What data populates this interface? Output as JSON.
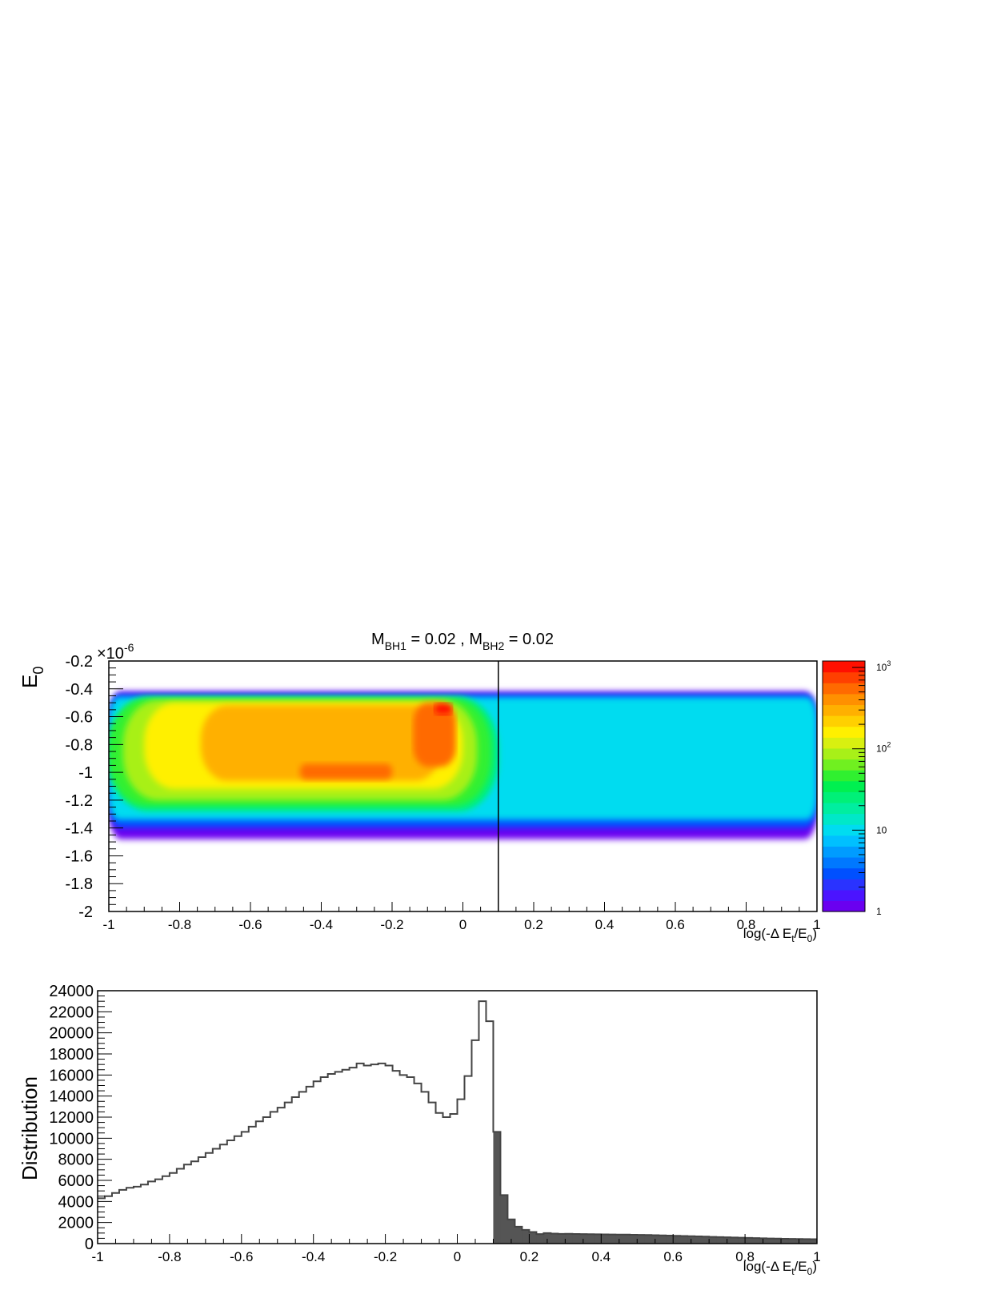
{
  "chart_data": [
    {
      "type": "heatmap",
      "title_parts": [
        "M",
        "BH1",
        " = 0.02 , M",
        "BH2",
        " = 0.02"
      ],
      "ylabel": {
        "base": "E",
        "sub": "0"
      },
      "xlabel": {
        "pre": "log(-Δ E",
        "sub1": "t",
        "mid": "/E",
        "sub2": "0",
        "post": ")"
      },
      "y_multiplier": {
        "base": "×10",
        "exp": "-6"
      },
      "xlim": [
        -1,
        1
      ],
      "ylim": [
        -2,
        -0.2
      ],
      "x_ticks": [
        "-1",
        "-0.8",
        "-0.6",
        "-0.4",
        "-0.2",
        "0",
        "0.2",
        "0.4",
        "0.6",
        "0.8",
        "1"
      ],
      "y_ticks": [
        "-2",
        "-1.8",
        "-1.6",
        "-1.4",
        "-1.2",
        "-1",
        "-0.8",
        "-0.6",
        "-0.4",
        "-0.2"
      ],
      "vertical_line_x": 0.1,
      "colorbar": {
        "scale": "log",
        "min": 1,
        "max": 1200,
        "labels": [
          {
            "value": 1,
            "base": "1",
            "exp": ""
          },
          {
            "value": 10,
            "base": "10",
            "exp": ""
          },
          {
            "value": 100,
            "base": "10",
            "exp": "2"
          },
          {
            "value": 1000,
            "base": "10",
            "exp": "3"
          }
        ],
        "colors": [
          "#6a00f0",
          "#4b14ff",
          "#2a33ff",
          "#0050ff",
          "#0078ff",
          "#009cff",
          "#00c0ff",
          "#00dcf0",
          "#00e8c8",
          "#00eea0",
          "#00f078",
          "#00f050",
          "#30f030",
          "#70f020",
          "#a8f018",
          "#d8f010",
          "#fff000",
          "#ffd000",
          "#ffb000",
          "#ff9000",
          "#ff6a00",
          "#ff4000",
          "#ff1000"
        ]
      },
      "contour_bands": [
        {
          "level": 1,
          "xl": -1.0,
          "xr": 1.0,
          "yt": -0.42,
          "yb": -1.48
        },
        {
          "level": 3,
          "xl": -1.0,
          "xr": 1.0,
          "yt": -0.44,
          "yb": -1.4
        },
        {
          "level": 10,
          "xl": -1.0,
          "xr": 1.0,
          "yt": -0.46,
          "yb": -1.34
        },
        {
          "level": 25,
          "xl": -1.0,
          "xr": 0.1,
          "yt": -0.46,
          "yb": -1.28
        },
        {
          "level": 50,
          "xl": -1.0,
          "xr": 0.08,
          "yt": -0.47,
          "yb": -1.24
        },
        {
          "level": 100,
          "xl": -0.96,
          "xr": 0.04,
          "yt": -0.48,
          "yb": -1.2
        },
        {
          "level": 170,
          "xl": -0.9,
          "xr": 0.0,
          "yt": -0.5,
          "yb": -1.12
        },
        {
          "level": 300,
          "xl": -0.74,
          "xr": -0.06,
          "yt": -0.52,
          "yb": -1.06
        },
        {
          "level": 500,
          "xl": -0.46,
          "xr": -0.2,
          "yt": -0.94,
          "yb": -1.05
        },
        {
          "level": 550,
          "xl": -0.14,
          "xr": -0.02,
          "yt": -0.5,
          "yb": -0.96
        },
        {
          "level": 1000,
          "xl": -0.08,
          "xr": -0.03,
          "yt": -0.51,
          "yb": -0.58
        }
      ]
    },
    {
      "type": "bar",
      "ylabel": "Distribution",
      "xlabel": {
        "pre": "log(-Δ E",
        "sub1": "t",
        "mid": "/E",
        "sub2": "0",
        "post": ")"
      },
      "xlim": [
        -1,
        1
      ],
      "ylim": [
        0,
        24000
      ],
      "x_ticks": [
        "-1",
        "-0.8",
        "-0.6",
        "-0.4",
        "-0.2",
        "0",
        "0.2",
        "0.4",
        "0.6",
        "0.8",
        "1"
      ],
      "y_ticks": [
        "0",
        "2000",
        "4000",
        "6000",
        "8000",
        "10000",
        "12000",
        "14000",
        "16000",
        "18000",
        "20000",
        "22000",
        "24000"
      ],
      "bin_width": 0.02,
      "fill_from_x": 0.1,
      "fill_color": "#555555",
      "values": [
        4300,
        4500,
        4800,
        5100,
        5300,
        5400,
        5600,
        5900,
        6100,
        6400,
        6700,
        7100,
        7500,
        7800,
        8200,
        8600,
        9000,
        9400,
        9800,
        10200,
        10600,
        11100,
        11600,
        12000,
        12500,
        12900,
        13400,
        13900,
        14400,
        14900,
        15400,
        15800,
        16100,
        16300,
        16500,
        16700,
        17100,
        16900,
        17000,
        17100,
        16900,
        16400,
        16000,
        15800,
        15200,
        14400,
        13400,
        12400,
        12000,
        12300,
        13700,
        15900,
        19300,
        23000,
        21100,
        10600,
        4600,
        2300,
        1600,
        1300,
        1100,
        900,
        1000,
        950,
        920,
        930,
        910,
        900,
        890,
        880,
        870,
        860,
        850,
        850,
        840,
        830,
        820,
        800,
        780,
        760,
        740,
        720,
        700,
        680,
        660,
        640,
        620,
        600,
        580,
        560,
        540,
        520,
        500,
        480,
        470,
        460,
        450,
        440,
        430,
        420
      ]
    }
  ]
}
